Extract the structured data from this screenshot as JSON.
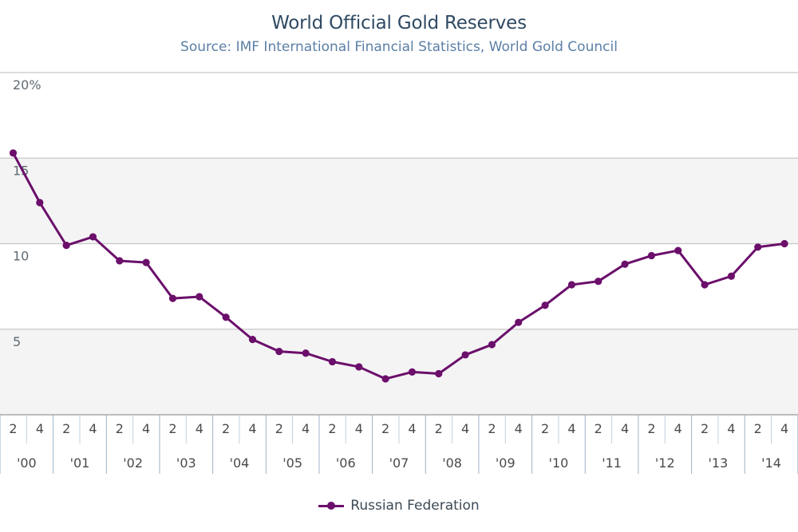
{
  "chart_data": {
    "type": "line",
    "title": "World Official Gold Reserves",
    "subtitle": "Source: IMF International Financial Statistics, World Gold Council",
    "y_ticks": [
      {
        "value": 5,
        "label": "5"
      },
      {
        "value": 10,
        "label": "10"
      },
      {
        "value": 15,
        "label": "15"
      },
      {
        "value": 20,
        "label": "20%"
      }
    ],
    "ylim": [
      0,
      20
    ],
    "x_quarter_labels": [
      "2",
      "4",
      "2",
      "4",
      "2",
      "4",
      "2",
      "4",
      "2",
      "4",
      "2",
      "4",
      "2",
      "4",
      "2",
      "4",
      "2",
      "4",
      "2",
      "4",
      "2",
      "4",
      "2",
      "4",
      "2",
      "4",
      "2",
      "4",
      "2",
      "4"
    ],
    "x_year_labels": [
      "'00",
      "'01",
      "'02",
      "'03",
      "'04",
      "'05",
      "'06",
      "'07",
      "'08",
      "'09",
      "'10",
      "'11",
      "'12",
      "'13",
      "'14"
    ],
    "grid": true,
    "legend_position": "bottom",
    "series": [
      {
        "name": "Russian Federation",
        "color": "#6b0f6b",
        "values": [
          15.3,
          12.4,
          9.9,
          10.4,
          9.0,
          8.9,
          6.8,
          6.9,
          5.7,
          4.4,
          3.7,
          3.6,
          3.1,
          2.8,
          2.1,
          2.5,
          2.4,
          3.5,
          4.1,
          5.4,
          6.4,
          7.6,
          7.8,
          8.8,
          9.3,
          9.6,
          7.6,
          8.1,
          9.8,
          10.0
        ]
      }
    ]
  },
  "legend": {
    "label": "Russian Federation"
  }
}
